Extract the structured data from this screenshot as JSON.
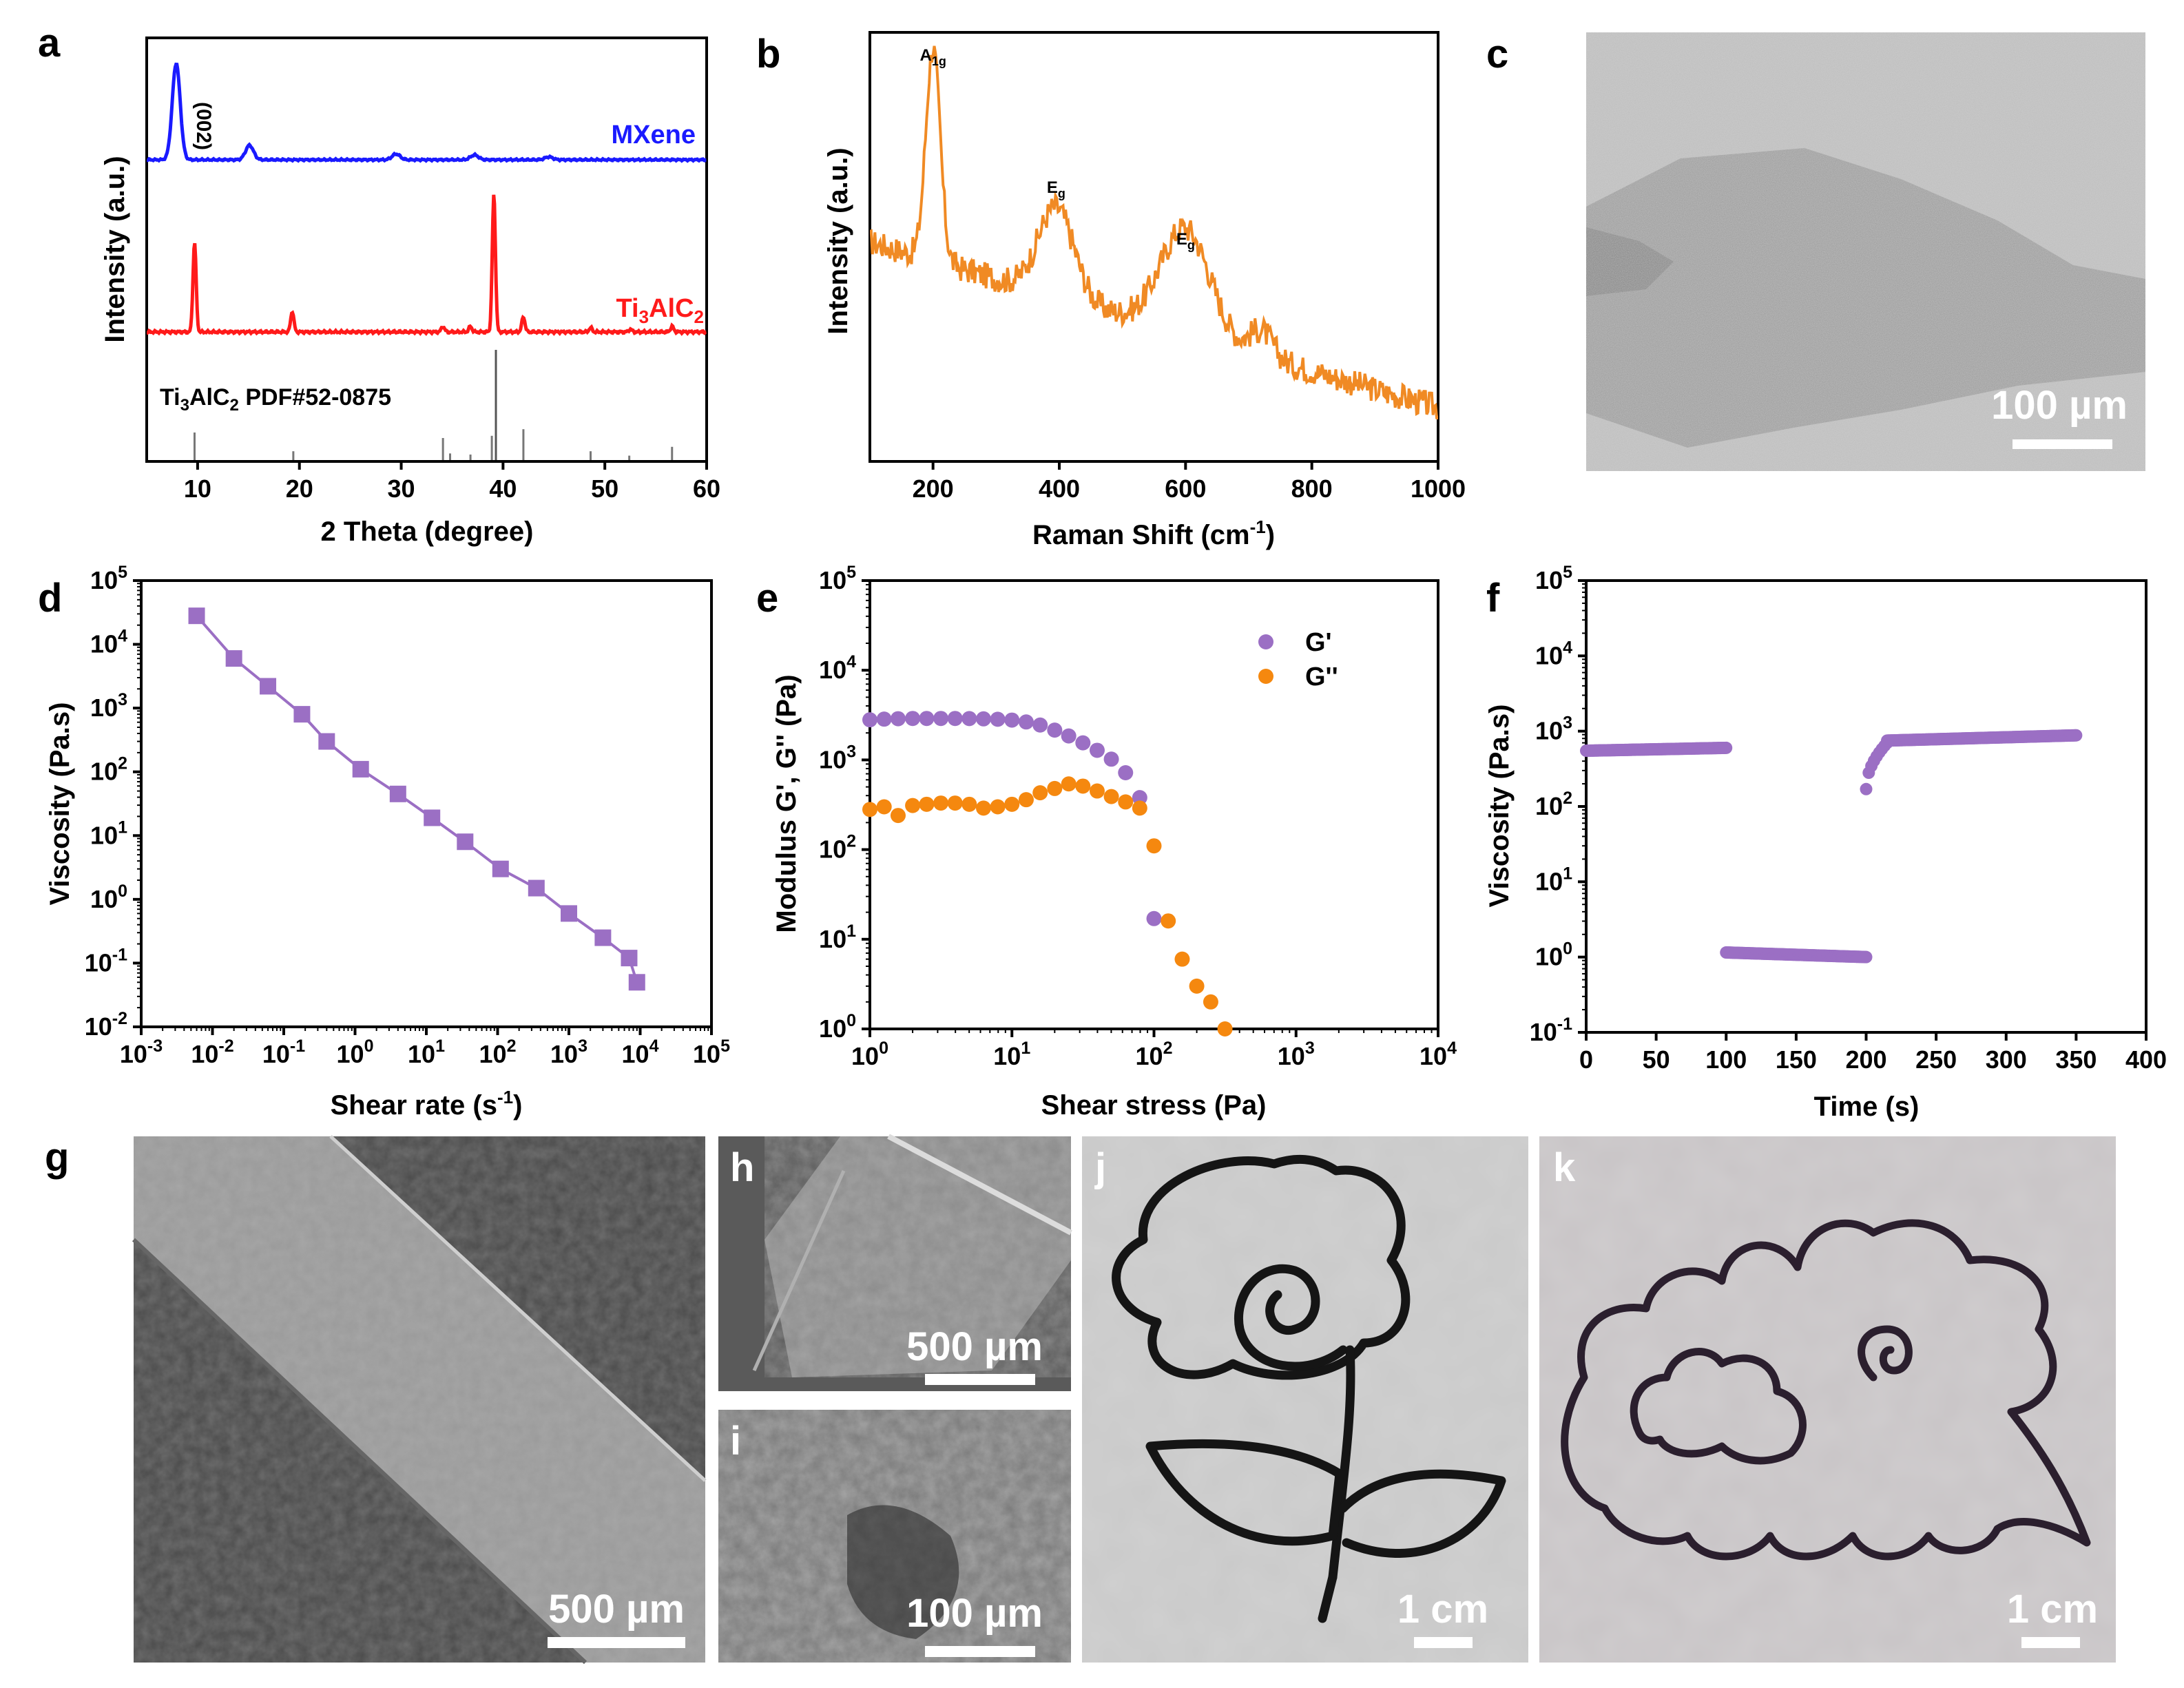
{
  "figure": {
    "panel_labels": {
      "a": "a",
      "b": "b",
      "c": "c",
      "d": "d",
      "e": "e",
      "f": "f",
      "g": "g",
      "h": "h",
      "i": "i",
      "j": "j",
      "k": "k"
    },
    "scale_bars": {
      "c": "100 µm",
      "g": "500 µm",
      "h": "500 µm",
      "i": "100 µm",
      "j": "1 cm",
      "k": "1 cm"
    },
    "colors": {
      "mxene": "#1a1aff",
      "ti3alc2": "#ff1a1a",
      "raman": "#f08a24",
      "purple": "#9b6fc4",
      "orange": "#f5880f",
      "ref": "#777777"
    }
  },
  "chart_data": [
    {
      "panel": "a",
      "type": "line",
      "xlabel": "2 Theta (degree)",
      "ylabel": "Intensity (a.u.)",
      "xlim": [
        5,
        60
      ],
      "xticks": [
        10,
        20,
        30,
        40,
        50,
        60
      ],
      "annotations": {
        "peak_002": "(002)",
        "ref_label": "Ti3AlC2  PDF#52-0875",
        "ref_prefix": "Ti",
        "ref_sub1": "3",
        "ref_mid": "AlC",
        "ref_sub2": "2",
        "ref_suffix": "  PDF#52-0875"
      },
      "series": [
        {
          "name": "MXene",
          "label": "MXene",
          "peaks": [
            [
              7.9,
              1.0
            ],
            [
              15.1,
              0.15
            ],
            [
              29.5,
              0.06
            ],
            [
              37.2,
              0.05
            ],
            [
              44.5,
              0.03
            ]
          ]
        },
        {
          "name": "Ti3AlC2",
          "label_main": "Ti",
          "label_sub1": "3",
          "label_mid": "AlC",
          "label_sub2": "2",
          "peaks": [
            [
              9.7,
              0.65
            ],
            [
              19.3,
              0.15
            ],
            [
              34.1,
              0.04
            ],
            [
              36.8,
              0.04
            ],
            [
              39.1,
              1.0
            ],
            [
              42.0,
              0.11
            ],
            [
              48.6,
              0.03
            ],
            [
              52.5,
              0.02
            ],
            [
              56.6,
              0.04
            ]
          ]
        },
        {
          "name": "PDF#52-0875",
          "sticks": [
            [
              9.7,
              0.25
            ],
            [
              19.4,
              0.08
            ],
            [
              34.1,
              0.2
            ],
            [
              34.8,
              0.06
            ],
            [
              36.8,
              0.05
            ],
            [
              38.9,
              0.22
            ],
            [
              39.3,
              1.0
            ],
            [
              42.0,
              0.28
            ],
            [
              48.6,
              0.08
            ],
            [
              52.4,
              0.04
            ],
            [
              56.6,
              0.12
            ]
          ]
        }
      ]
    },
    {
      "panel": "b",
      "type": "line",
      "xlabel": "Raman Shift (cm",
      "xlabel_sup": "-1",
      "xlabel_end": ")",
      "ylabel": "Intensity (a.u.)",
      "xlim": [
        100,
        1000
      ],
      "xticks": [
        200,
        400,
        600,
        800,
        1000
      ],
      "annotations": [
        {
          "x": 200,
          "main": "A",
          "sub": "1g"
        },
        {
          "x": 395,
          "main": "E",
          "sub": "g"
        },
        {
          "x": 600,
          "main": "E",
          "sub": "g"
        }
      ],
      "series": [
        {
          "name": "Raman",
          "peaks": [
            [
              200,
              1.0,
              16
            ],
            [
              395,
              0.42,
              40
            ],
            [
              600,
              0.5,
              55
            ],
            [
              720,
              0.12,
              25
            ]
          ],
          "baseline_start": 0.48,
          "baseline_end": 0.05
        }
      ]
    },
    {
      "panel": "d",
      "type": "scatter",
      "xlabel": "Shear rate (s",
      "xlabel_sup": "-1",
      "xlabel_end": ")",
      "ylabel": "Viscosity (Pa.s)",
      "xscale": "log",
      "yscale": "log",
      "xlim_exp": [
        -3,
        5
      ],
      "ylim_exp": [
        -2,
        5
      ],
      "x": [
        0.006,
        0.02,
        0.06,
        0.18,
        0.4,
        1.2,
        4.0,
        12.0,
        35,
        110,
        350,
        1000,
        3000,
        7000,
        9000
      ],
      "y": [
        28000,
        6000,
        2200,
        800,
        300,
        110,
        45,
        19,
        8,
        3,
        1.5,
        0.6,
        0.25,
        0.12,
        0.05
      ]
    },
    {
      "panel": "e",
      "type": "scatter",
      "xlabel": "Shear stress (Pa)",
      "ylabel": "Modulus G', G'' (Pa)",
      "xscale": "log",
      "yscale": "log",
      "xlim_exp": [
        0,
        4
      ],
      "ylim_exp": [
        0,
        5
      ],
      "legend": [
        "G'",
        "G''"
      ],
      "series": [
        {
          "name": "G'",
          "x": [
            1.0,
            1.26,
            1.58,
            2.0,
            2.51,
            3.16,
            3.98,
            5.01,
            6.31,
            7.94,
            10,
            12.6,
            15.8,
            20,
            25.1,
            31.6,
            39.8,
            50.1,
            63.1,
            79.4,
            100
          ],
          "y": [
            2800,
            2850,
            2880,
            2900,
            2900,
            2900,
            2900,
            2890,
            2870,
            2840,
            2780,
            2650,
            2450,
            2150,
            1850,
            1550,
            1280,
            1020,
            720,
            380,
            17
          ]
        },
        {
          "name": "G''",
          "x": [
            1.0,
            1.26,
            1.58,
            2.0,
            2.51,
            3.16,
            3.98,
            5.01,
            6.31,
            7.94,
            10,
            12.6,
            15.8,
            20,
            25.1,
            31.6,
            39.8,
            50.1,
            63.1,
            79.4,
            100,
            126,
            158,
            200,
            251,
            316
          ],
          "y": [
            280,
            300,
            240,
            310,
            320,
            330,
            330,
            320,
            290,
            300,
            320,
            360,
            430,
            480,
            540,
            510,
            450,
            390,
            340,
            290,
            110,
            16,
            6,
            3,
            2,
            1
          ]
        }
      ]
    },
    {
      "panel": "f",
      "type": "scatter",
      "xlabel": "Time (s)",
      "ylabel": "Viscosity (Pa.s)",
      "yscale": "log",
      "xlim": [
        0,
        400
      ],
      "xticks": [
        0,
        50,
        100,
        150,
        200,
        250,
        300,
        350,
        400
      ],
      "ylim_exp": [
        -1,
        5
      ],
      "segments": [
        {
          "x_start": 0,
          "x_end": 100,
          "y_start": 550,
          "y_end": 600
        },
        {
          "x_start": 100,
          "x_end": 200,
          "y_start": 1.15,
          "y_end": 1.0
        },
        {
          "x_start": 200,
          "x_end": 215,
          "y_start": 170,
          "y_end": 700,
          "recovery": true
        },
        {
          "x_start": 215,
          "x_end": 350,
          "y_start": 750,
          "y_end": 880
        }
      ]
    }
  ]
}
